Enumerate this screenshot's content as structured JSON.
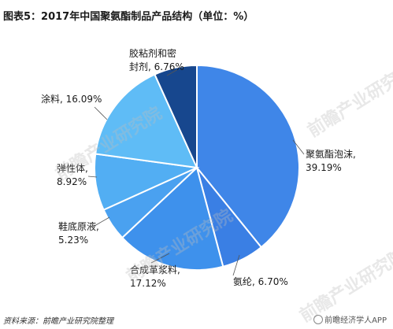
{
  "chart_data": {
    "type": "pie",
    "title": "图表5：2017年中国聚氨酯制品产品结构（单位：%）",
    "series": [
      {
        "name": "",
        "slices": [
          {
            "label_lines": [
              "聚氨酯泡沫,",
              "39.19%"
            ],
            "value": 39.19,
            "color": "#3f86e8"
          },
          {
            "label_lines": [
              "氨纶, 6.70%"
            ],
            "value": 6.7,
            "color": "#3a7fe4"
          },
          {
            "label_lines": [
              "合成革浆料,",
              "17.12%"
            ],
            "value": 17.12,
            "color": "#3e91ec"
          },
          {
            "label_lines": [
              "鞋底原液,",
              "5.23%"
            ],
            "value": 5.23,
            "color": "#4aa1f0"
          },
          {
            "label_lines": [
              "弹性体,",
              "8.92%"
            ],
            "value": 8.92,
            "color": "#52aef3"
          },
          {
            "label_lines": [
              "涂料, 16.09%"
            ],
            "value": 16.09,
            "color": "#5fbcf6"
          },
          {
            "label_lines": [
              "胶粘剂和密",
              "封剂, 6.76%"
            ],
            "value": 6.76,
            "color": "#17478e"
          }
        ]
      }
    ]
  },
  "footer": {
    "source": "资料来源：前瞻产业研究院整理",
    "brand": "前瞻经济学人APP"
  },
  "watermark": {
    "text": "前瞻产业研究院"
  }
}
